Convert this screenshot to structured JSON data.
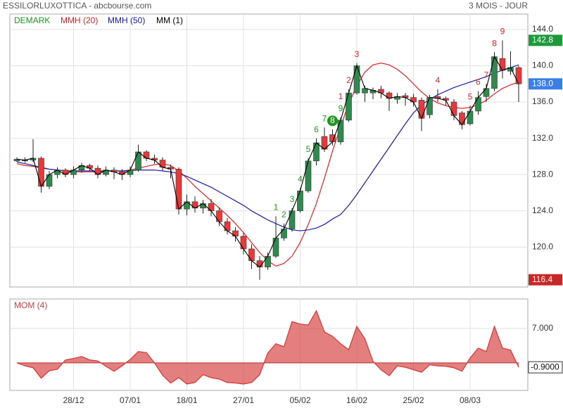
{
  "chart_data": [
    {
      "type": "candlestick",
      "title": "ESSILORLUXOTTICA - abcbourse.com",
      "subtitle": "3 MOIS - JOUR",
      "categories": [
        null,
        null,
        null,
        null,
        null,
        null,
        null,
        "28/12",
        null,
        null,
        null,
        null,
        null,
        null,
        "07/01",
        null,
        null,
        null,
        null,
        null,
        null,
        "18/01",
        null,
        null,
        null,
        null,
        null,
        null,
        "27/01",
        null,
        null,
        null,
        null,
        null,
        null,
        "05/02",
        null,
        null,
        null,
        null,
        null,
        null,
        "16/02",
        null,
        null,
        null,
        null,
        null,
        null,
        "25/02",
        null,
        null,
        null,
        null,
        null,
        null,
        "08/03",
        null,
        null,
        null,
        null,
        null,
        null
      ],
      "open": [
        129.5,
        129.5,
        129.6,
        129.8,
        126.7,
        128.0,
        128.5,
        128.0,
        128.5,
        129.0,
        128.7,
        128.0,
        128.5,
        128.3,
        128.0,
        128.5,
        130.5,
        129.8,
        129.6,
        128.8,
        128.6,
        124.2,
        125.0,
        124.3,
        124.8,
        124.0,
        122.8,
        121.8,
        121.2,
        119.8,
        118.5,
        117.8,
        119.0,
        121.0,
        122.0,
        124.0,
        126.2,
        129.5,
        132.2,
        132.4,
        131.6,
        134.0,
        137.0,
        137.0,
        137.0,
        137.4,
        137.0,
        136.3,
        136.7,
        136.5,
        136.2,
        134.6,
        136.6,
        136.4,
        136.0,
        134.8,
        133.6,
        135.0,
        136.6,
        137.5,
        140.8,
        139.4,
        139.8
      ],
      "high": [
        129.9,
        129.9,
        131.9,
        130.0,
        128.4,
        128.8,
        128.7,
        128.9,
        129.3,
        129.2,
        129.0,
        128.9,
        128.8,
        128.6,
        128.9,
        131.3,
        130.7,
        130.2,
        129.9,
        129.1,
        128.8,
        125.8,
        125.6,
        125.2,
        125.3,
        124.4,
        123.2,
        122.2,
        121.6,
        120.3,
        119.0,
        119.4,
        123.4,
        122.6,
        124.3,
        126.5,
        129.8,
        132.0,
        133.2,
        133.0,
        134.3,
        137.4,
        140.3,
        137.8,
        137.6,
        137.8,
        137.2,
        137.0,
        137.0,
        136.9,
        136.5,
        136.8,
        137.4,
        136.6,
        136.3,
        135.0,
        135.6,
        137.2,
        138.0,
        141.5,
        142.8,
        141.6,
        140.0
      ],
      "low": [
        129.4,
        129.3,
        129.4,
        126.0,
        126.4,
        127.6,
        127.7,
        127.6,
        128.2,
        128.4,
        127.6,
        127.8,
        127.5,
        127.4,
        127.7,
        128.3,
        129.5,
        129.2,
        128.4,
        127.6,
        123.6,
        123.5,
        123.8,
        123.7,
        123.4,
        122.3,
        121.4,
        120.6,
        119.2,
        117.6,
        116.4,
        117.5,
        118.8,
        120.7,
        121.7,
        123.8,
        126.0,
        129.0,
        130.5,
        131.2,
        131.3,
        133.8,
        136.8,
        136.0,
        136.3,
        136.4,
        135.0,
        135.8,
        135.6,
        135.5,
        132.8,
        134.2,
        136.0,
        135.6,
        134.0,
        133.0,
        133.4,
        134.6,
        136.0,
        137.2,
        138.6,
        139.0,
        136.0
      ],
      "close": [
        129.7,
        129.6,
        129.8,
        126.7,
        128.0,
        128.5,
        128.0,
        128.5,
        129.0,
        128.7,
        128.0,
        128.5,
        128.3,
        128.0,
        128.5,
        130.5,
        129.8,
        129.6,
        128.8,
        128.6,
        124.2,
        125.0,
        124.3,
        124.8,
        124.0,
        122.8,
        121.8,
        121.2,
        119.8,
        118.5,
        117.8,
        119.0,
        121.0,
        122.0,
        124.0,
        126.2,
        129.5,
        131.5,
        130.8,
        131.6,
        134.0,
        137.0,
        140.0,
        137.5,
        137.3,
        137.0,
        136.4,
        136.6,
        136.5,
        136.0,
        134.2,
        136.5,
        136.4,
        136.2,
        134.5,
        133.5,
        135.0,
        136.5,
        137.5,
        141.0,
        139.5,
        139.8,
        138.0
      ],
      "up_color": "#2e8b4e",
      "down_color": "#e8393a",
      "series": [
        {
          "name": "DEMARK",
          "color": "#1a9a1a",
          "down_color": "#e02424",
          "up": [
            null,
            null,
            null,
            null,
            null,
            null,
            null,
            null,
            null,
            null,
            null,
            null,
            null,
            null,
            null,
            null,
            null,
            null,
            null,
            null,
            null,
            null,
            null,
            null,
            null,
            null,
            null,
            null,
            null,
            null,
            null,
            null,
            "1",
            "2",
            "3",
            "4",
            "5",
            "6",
            "7",
            {
              "label": "8",
              "circled": true
            },
            "9",
            null,
            null,
            null,
            null,
            null,
            null,
            null,
            null,
            null,
            null,
            null,
            null,
            null,
            null,
            null,
            null,
            null,
            null,
            null,
            null,
            null,
            null
          ],
          "down": [
            null,
            null,
            null,
            null,
            null,
            null,
            null,
            null,
            null,
            null,
            null,
            null,
            null,
            null,
            null,
            null,
            null,
            null,
            null,
            null,
            null,
            null,
            null,
            null,
            null,
            null,
            null,
            null,
            null,
            null,
            null,
            null,
            null,
            null,
            null,
            null,
            null,
            null,
            null,
            null,
            "1",
            "2",
            "3",
            null,
            null,
            null,
            null,
            null,
            null,
            null,
            null,
            null,
            "4",
            null,
            null,
            null,
            "5",
            "6",
            "7",
            "8",
            "9",
            null,
            null
          ]
        },
        {
          "name": "MMH (20)",
          "color": "#e02020",
          "values": [
            129.2,
            129.0,
            128.9,
            128.7,
            128.6,
            128.5,
            128.4,
            128.3,
            128.3,
            128.3,
            128.3,
            128.4,
            128.4,
            128.4,
            128.5,
            128.7,
            128.9,
            129.1,
            129.2,
            129.0,
            128.4,
            127.6,
            126.7,
            125.9,
            125.1,
            124.3,
            123.5,
            122.6,
            121.6,
            120.5,
            119.4,
            118.5,
            117.9,
            118.2,
            119.0,
            120.5,
            122.5,
            124.8,
            127.6,
            130.6,
            133.3,
            135.8,
            137.8,
            139.3,
            140.1,
            140.3,
            140.1,
            139.6,
            138.9,
            138.0,
            137.1,
            136.4,
            135.9,
            135.6,
            135.4,
            135.3,
            135.4,
            135.7,
            136.2,
            136.9,
            137.5,
            137.9,
            138.2
          ]
        },
        {
          "name": "MMH (50)",
          "color": "#1a1aa8",
          "values": [
            129.4,
            129.2,
            129.0,
            128.8,
            128.6,
            128.5,
            128.4,
            128.4,
            128.4,
            128.4,
            128.4,
            128.4,
            128.4,
            128.4,
            128.4,
            128.5,
            128.5,
            128.5,
            128.4,
            128.3,
            128.1,
            127.8,
            127.4,
            127.0,
            126.6,
            126.1,
            125.6,
            125.1,
            124.6,
            124.0,
            123.5,
            123.0,
            122.6,
            122.2,
            121.9,
            121.8,
            121.9,
            122.1,
            122.5,
            123.1,
            123.6,
            124.6,
            125.8,
            127.1,
            128.4,
            129.7,
            131.0,
            132.3,
            133.6,
            134.8,
            135.7,
            136.3,
            136.8,
            137.2,
            137.6,
            137.9,
            138.2,
            138.5,
            138.8,
            139.2,
            139.5,
            139.8,
            140.1
          ]
        },
        {
          "name": "MM (1)",
          "color": "#000000"
        }
      ],
      "ylim": [
        115.6,
        145.7
      ],
      "yticks": [
        {
          "value": 120,
          "label": "120.0"
        },
        {
          "value": 124,
          "label": "124.0"
        },
        {
          "value": 128,
          "label": "128.0"
        },
        {
          "value": 132,
          "label": "132.0"
        },
        {
          "value": 136,
          "label": "136.0"
        },
        {
          "value": 140,
          "label": "140.0"
        },
        {
          "value": 144,
          "label": "144.0"
        }
      ],
      "grid": true,
      "markers": [
        {
          "value": 142.8,
          "label": "142.8",
          "color": "#1c9a3a"
        },
        {
          "value": 138.0,
          "label": "138.0",
          "color": "#3a7ee8"
        },
        {
          "value": 116.4,
          "label": "116.4",
          "color": "#c62828"
        }
      ]
    },
    {
      "type": "area",
      "title": "MOM (4)",
      "color": "#d63b3b",
      "values": [
        0,
        -0.6,
        -1,
        -3.1,
        -1.6,
        -1.3,
        0.6,
        0.9,
        1.3,
        0.6,
        0.4,
        -0.7,
        -1.7,
        -0.6,
        0.7,
        2.3,
        2.1,
        0,
        -2.5,
        -4.1,
        -3,
        -4.3,
        -4,
        -2.4,
        -3,
        -3.3,
        -4,
        -4.1,
        -4.3,
        -4,
        -2.4,
        2,
        3.9,
        3.3,
        8.4,
        7.9,
        7.7,
        10.6,
        6.3,
        5.4,
        3.9,
        2.7,
        7.4,
        4.9,
        0.3,
        -1.4,
        -2.6,
        -0.6,
        -0.9,
        -1.4,
        -1.9,
        -0.4,
        -0.6,
        -0.7,
        -1,
        -1.7,
        1,
        3,
        2.3,
        7.4,
        3,
        2.6,
        -0.9
      ],
      "ylim": [
        -5.6,
        13
      ],
      "yticks": [
        {
          "value": 7,
          "label": "7.000"
        }
      ],
      "grid": true,
      "last": {
        "value": -0.9,
        "label": "-0.9000"
      }
    }
  ]
}
